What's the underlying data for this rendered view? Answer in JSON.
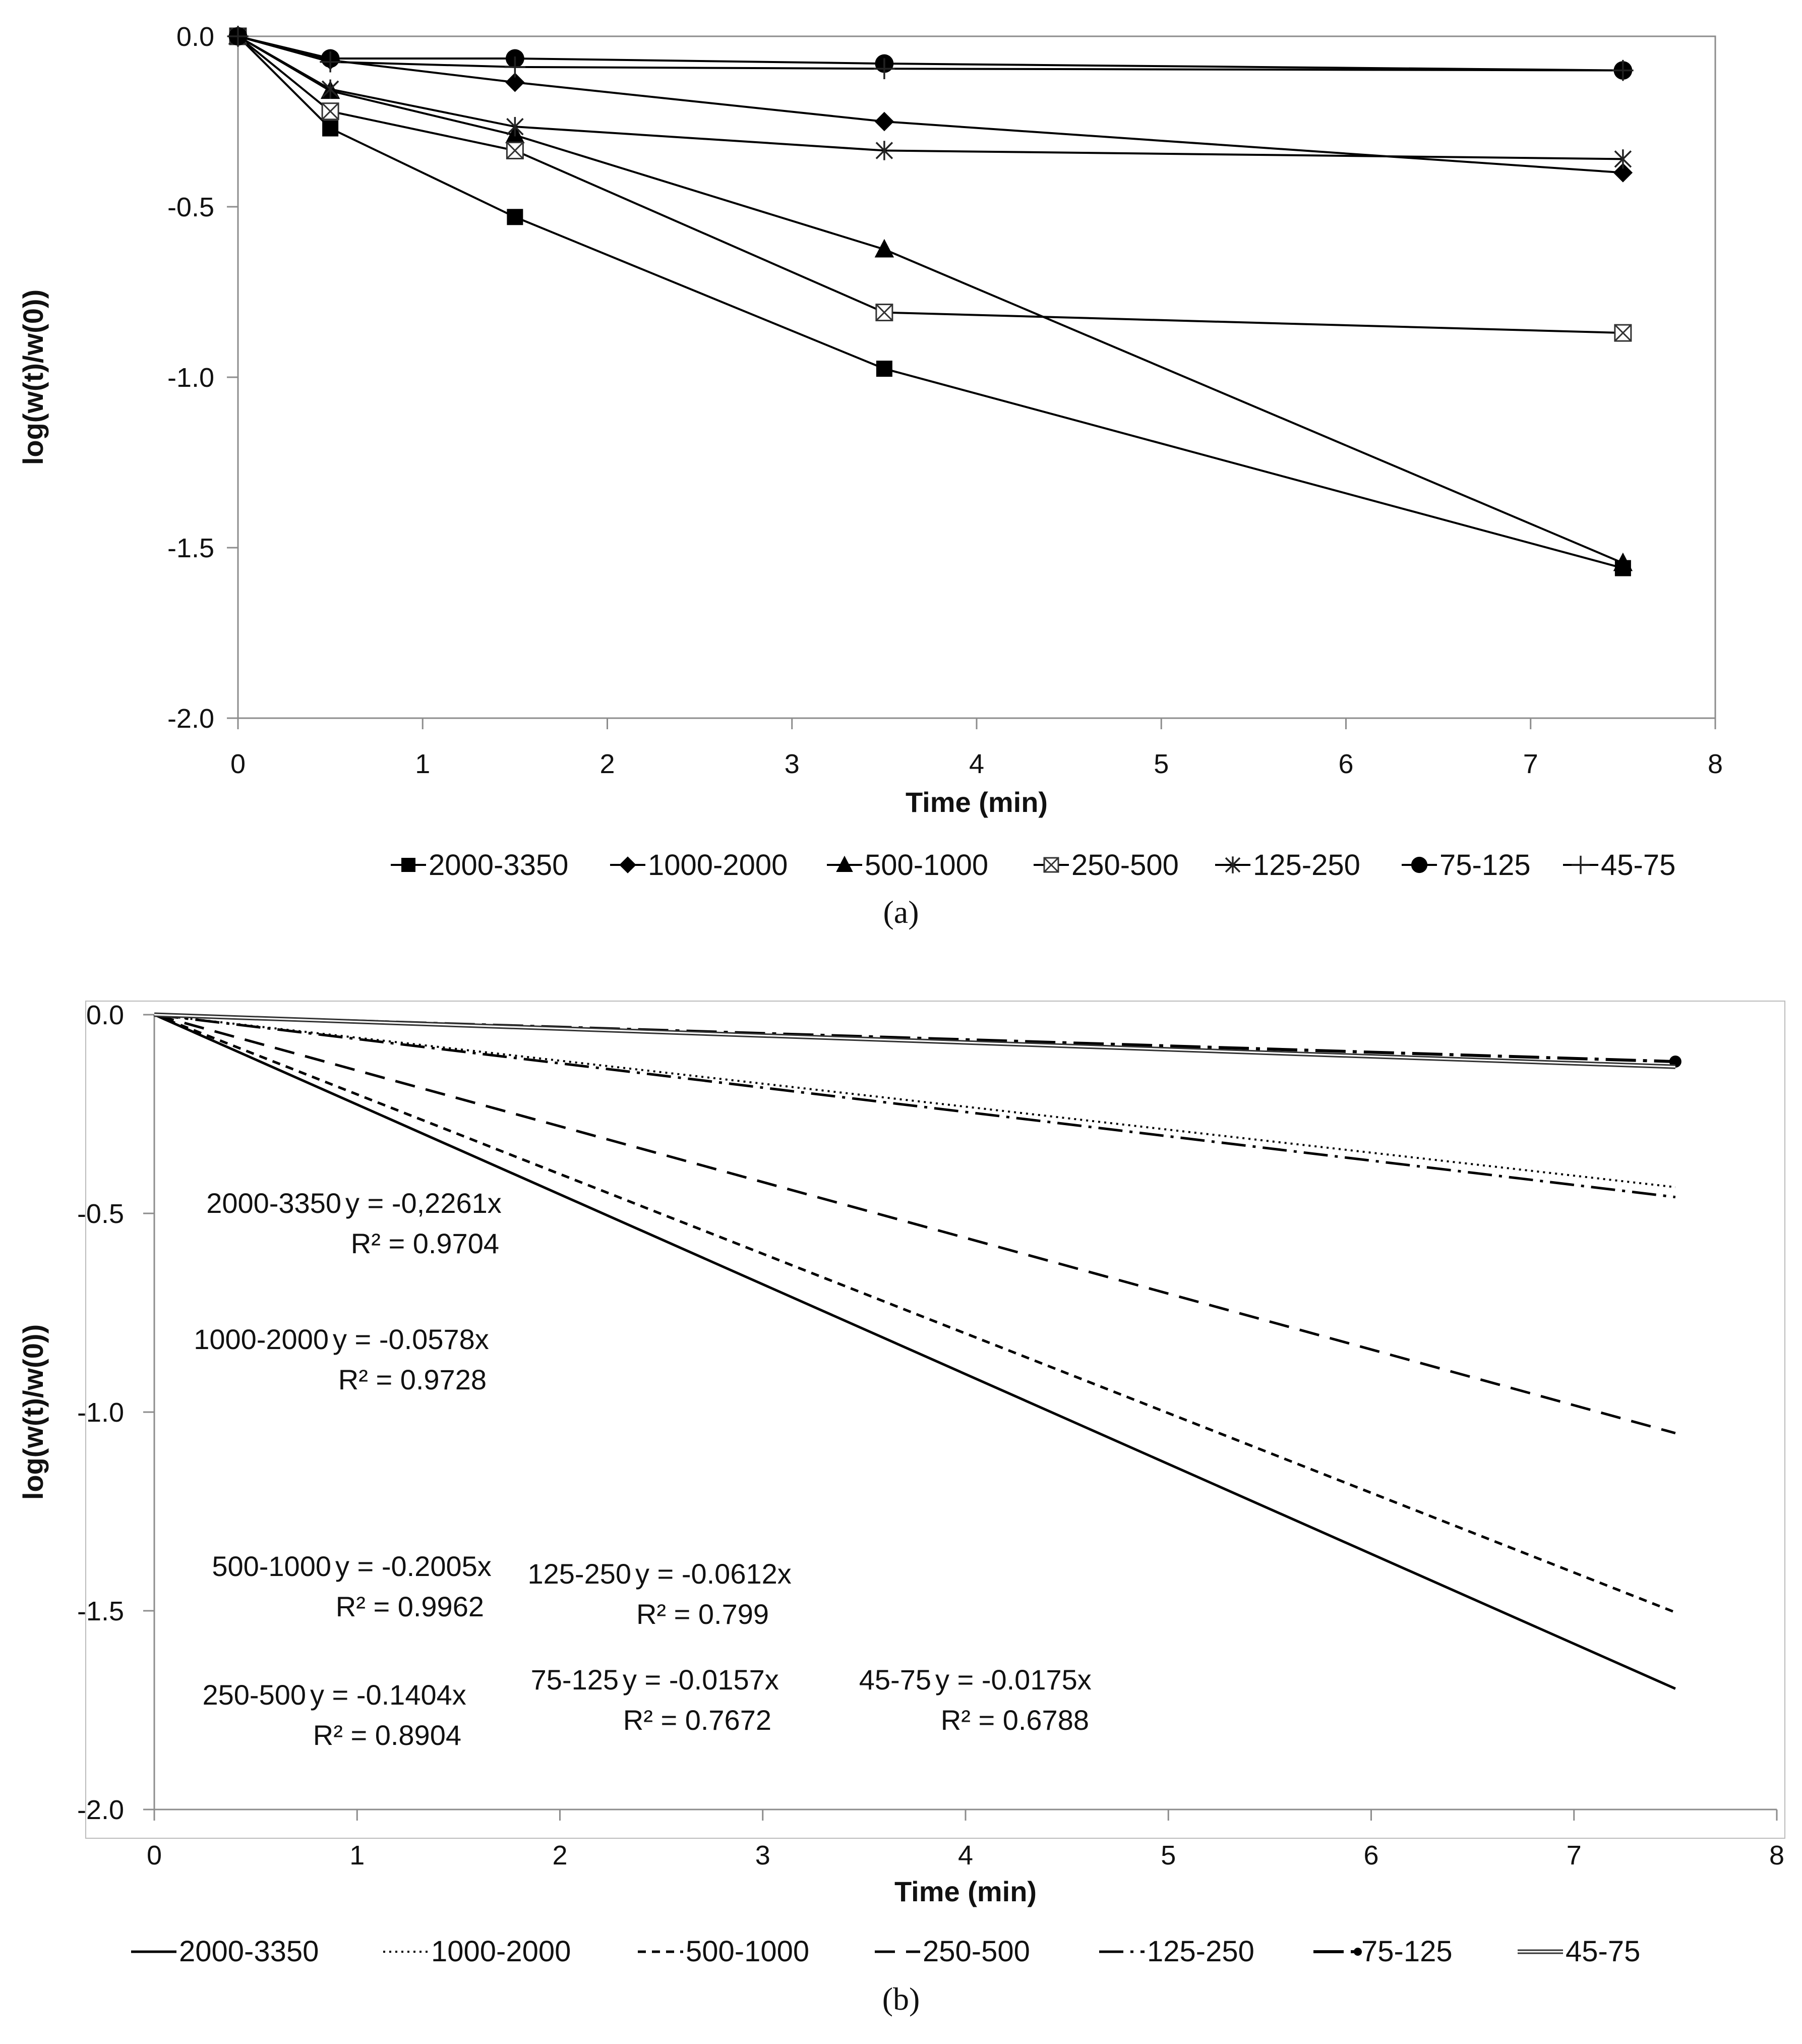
{
  "chart_data": [
    {
      "type": "line",
      "panel_label": "(a)",
      "xlabel": "Time (min)",
      "ylabel": "log(w(t)/w(0))",
      "xlim": [
        0,
        8
      ],
      "ylim": [
        -2.0,
        0.0
      ],
      "x_ticks": [
        "0",
        "1",
        "2",
        "3",
        "4",
        "5",
        "6",
        "7",
        "8"
      ],
      "y_ticks": [
        "0.0",
        "-0.5",
        "-1.0",
        "-1.5",
        "-2.0"
      ],
      "grid": false,
      "legend_position": "bottom",
      "x": [
        0,
        0.5,
        1.5,
        3.5,
        7.5
      ],
      "series": [
        {
          "name": "2000-3350",
          "marker": "square-filled",
          "values": [
            0,
            -0.27,
            -0.53,
            -0.975,
            -1.56
          ]
        },
        {
          "name": "1000-2000",
          "marker": "diamond-filled",
          "values": [
            0,
            -0.07,
            -0.135,
            -0.25,
            -0.4
          ]
        },
        {
          "name": "500-1000",
          "marker": "triangle-filled",
          "values": [
            0,
            -0.16,
            -0.29,
            -0.625,
            -1.545
          ]
        },
        {
          "name": "250-500",
          "marker": "square-crossed",
          "values": [
            0,
            -0.22,
            -0.335,
            -0.81,
            -0.87
          ]
        },
        {
          "name": "125-250",
          "marker": "star",
          "values": [
            0,
            -0.155,
            -0.265,
            -0.335,
            -0.36
          ]
        },
        {
          "name": "75-125",
          "marker": "circle-filled",
          "values": [
            0,
            -0.065,
            -0.065,
            -0.08,
            -0.1
          ]
        },
        {
          "name": "45-75",
          "marker": "plus",
          "values": [
            0,
            -0.075,
            -0.09,
            -0.095,
            -0.1
          ]
        }
      ]
    },
    {
      "type": "line",
      "panel_label": "(b)",
      "xlabel": "Time (min)",
      "ylabel": "log(w(t)/w(0))",
      "xlim": [
        0,
        8
      ],
      "ylim": [
        -2.0,
        0.0
      ],
      "x_ticks": [
        "0",
        "1",
        "2",
        "3",
        "4",
        "5",
        "6",
        "7",
        "8"
      ],
      "y_ticks": [
        "0.0",
        "-0.5",
        "-1.0",
        "-1.5",
        "-2.0"
      ],
      "grid": false,
      "legend_position": "bottom",
      "x": [
        0,
        7.5
      ],
      "series": [
        {
          "name": "2000-3350",
          "style": "solid",
          "slope": -0.2261,
          "equation": "y = -0,2261x",
          "r2": "R² = 0.9704",
          "values": [
            0,
            -1.696
          ]
        },
        {
          "name": "1000-2000",
          "style": "dotted",
          "slope": -0.0578,
          "equation": "y = -0.0578x",
          "r2": "R² = 0.9728",
          "values": [
            0,
            -0.434
          ]
        },
        {
          "name": "500-1000",
          "style": "short-dash",
          "slope": -0.2005,
          "equation": "y = -0.2005x",
          "r2": "R² = 0.9962",
          "values": [
            0,
            -1.504
          ]
        },
        {
          "name": "250-500",
          "style": "long-dash",
          "slope": -0.1404,
          "equation": "y = -0.1404x",
          "r2": "R² = 0.8904",
          "values": [
            0,
            -1.053
          ]
        },
        {
          "name": "125-250",
          "style": "dash-dot",
          "slope": -0.0612,
          "equation": "y = -0.0612x",
          "r2": "R² = 0.799",
          "values": [
            0,
            -0.459
          ]
        },
        {
          "name": "75-125",
          "style": "long-dash-dot",
          "slope": -0.0157,
          "equation": "y = -0.0157x",
          "r2": "R² = 0.7672",
          "values": [
            0,
            -0.118
          ]
        },
        {
          "name": "45-75",
          "style": "double",
          "slope": -0.0175,
          "equation": "y = -0.0175x",
          "r2": "R² = 0.6788",
          "values": [
            0,
            -0.131
          ]
        }
      ]
    }
  ]
}
